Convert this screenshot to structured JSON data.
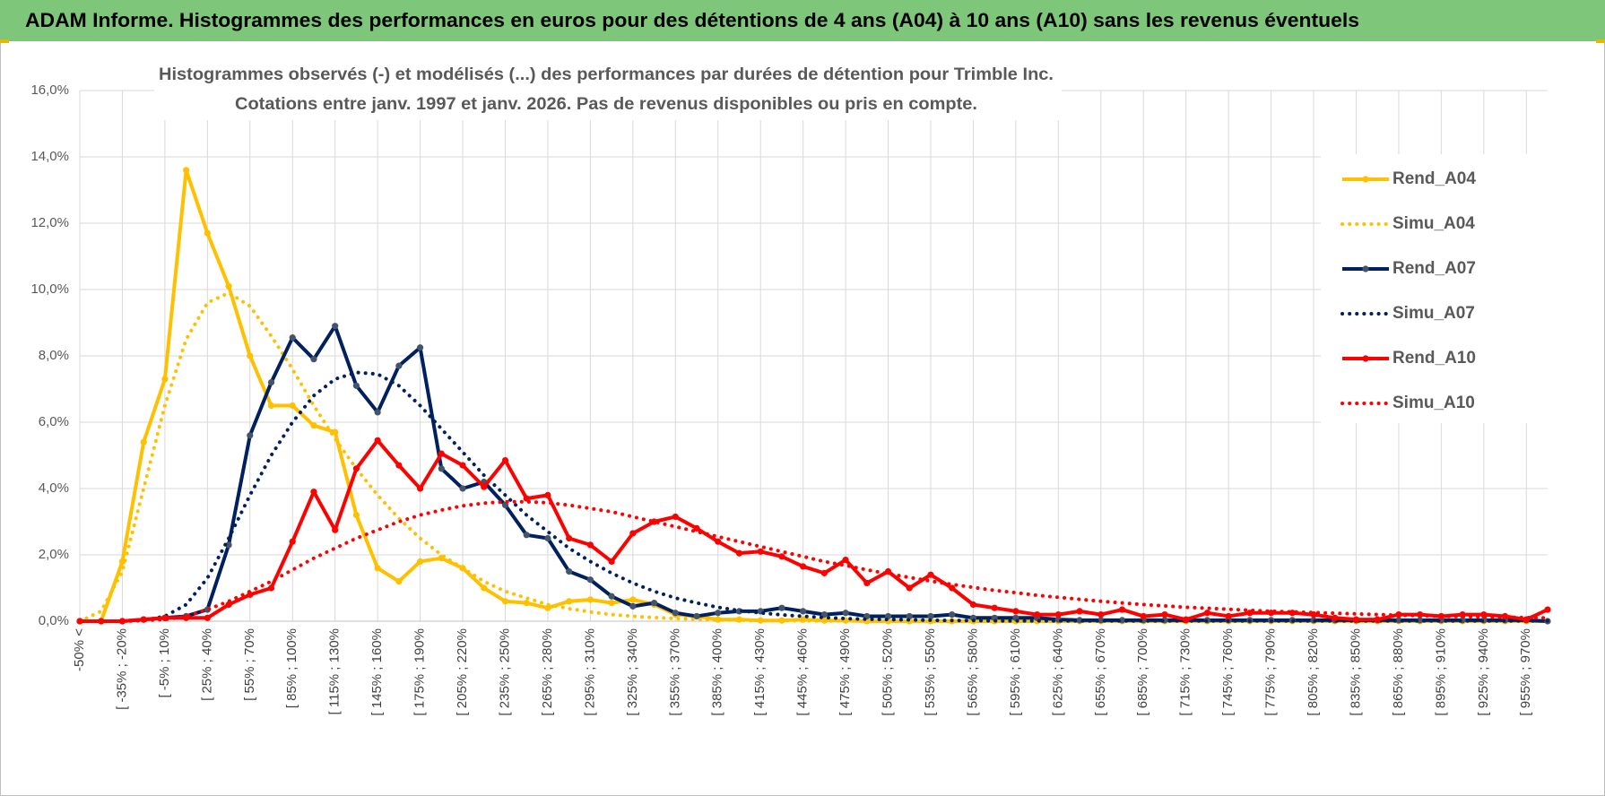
{
  "header": {
    "title": "ADAM Informe. Histogrammes des performances en euros pour des détentions de 4 ans (A04) à 10 ans (A10) sans les revenus éventuels"
  },
  "chart_data": {
    "type": "line",
    "title": "Histogrammes observés (-) et modélisés (...) des performances par durées de détention pour Trimble Inc.",
    "subtitle": "Cotations entre janv. 1997 et janv. 2026. Pas de revenus disponibles ou pris en compte.",
    "categories": [
      "-50% <",
      null,
      "[ -35% ; -20%",
      null,
      "[ -5% ; 10%",
      null,
      "[ 25% ; 40%",
      null,
      "[ 55% ; 70%",
      null,
      "[ 85% ; 100%",
      null,
      "[ 115% ; 130%",
      null,
      "[ 145% ; 160%",
      null,
      "[ 175% ; 190%",
      null,
      "[ 205% ; 220%",
      null,
      "[ 235% ; 250%",
      null,
      "[ 265% ; 280%",
      null,
      "[ 295% ; 310%",
      null,
      "[ 325% ; 340%",
      null,
      "[ 355% ; 370%",
      null,
      "[ 385% ; 400%",
      null,
      "[ 415% ; 430%",
      null,
      "[ 445% ; 460%",
      null,
      "[ 475% ; 490%",
      null,
      "[ 505% ; 520%",
      null,
      "[ 535% ; 550%",
      null,
      "[ 565% ; 580%",
      null,
      "[ 595% ; 610%",
      null,
      "[ 625% ; 640%",
      null,
      "[ 655% ; 670%",
      null,
      "[ 685% ; 700%",
      null,
      "[ 715% ; 730%",
      null,
      "[ 745% ; 760%",
      null,
      "[ 775% ; 790%",
      null,
      "[ 805% ; 820%",
      null,
      "[ 835% ; 850%",
      null,
      "[ 865% ; 880%",
      null,
      "[ 895% ; 910%",
      null,
      "[ 925% ; 940%",
      null,
      "[ 955% ; 970%",
      null
    ],
    "series": [
      {
        "name": "Rend_A04",
        "color": "#FFC000",
        "style": "solid",
        "markers": true,
        "values": [
          0,
          0,
          1.8,
          5.4,
          7.3,
          13.6,
          11.7,
          10.1,
          8,
          6.5,
          6.5,
          5.9,
          5.7,
          3.2,
          1.6,
          1.2,
          1.8,
          1.9,
          1.6,
          1,
          0.6,
          0.55,
          0.4,
          0.6,
          0.65,
          0.55,
          0.65,
          0.5,
          0.2,
          0.15,
          0.05,
          0.05,
          0.02,
          0.02,
          0.05,
          0.02,
          0.02,
          0,
          0,
          0,
          0,
          0,
          0,
          0,
          0,
          0,
          0,
          0,
          0,
          0,
          0,
          0,
          0,
          0,
          0,
          0,
          0,
          0,
          0,
          0,
          0,
          0,
          0,
          0,
          0,
          0,
          0,
          0,
          0,
          0
        ]
      },
      {
        "name": "Simu_A04",
        "color": "#FFC000",
        "style": "dotted",
        "markers": false,
        "values": [
          0,
          0.3,
          1.5,
          4,
          6.5,
          8.5,
          9.6,
          9.9,
          9.5,
          8.6,
          7.6,
          6.5,
          5.5,
          4.6,
          3.8,
          3.1,
          2.5,
          2,
          1.6,
          1.2,
          0.9,
          0.7,
          0.5,
          0.38,
          0.28,
          0.2,
          0.15,
          0.11,
          0.08,
          0.06,
          0.04,
          0.03,
          0.02,
          0.02,
          0.01,
          0.01,
          0.01,
          0,
          0,
          0,
          0,
          0,
          0,
          0,
          0,
          0,
          0,
          0,
          0,
          0,
          0,
          0,
          0,
          0,
          0,
          0,
          0,
          0,
          0,
          0,
          0,
          0,
          0,
          0,
          0,
          0,
          0,
          0,
          0,
          0
        ]
      },
      {
        "name": "Rend_A07",
        "color": "#002060",
        "style": "solid",
        "markers": true,
        "values": [
          0,
          0,
          0,
          0.05,
          0.1,
          0.15,
          0.35,
          2.3,
          5.6,
          7.2,
          8.55,
          7.9,
          8.9,
          7.1,
          6.3,
          7.7,
          8.25,
          4.6,
          4,
          4.2,
          3.5,
          2.6,
          2.5,
          1.5,
          1.25,
          0.75,
          0.45,
          0.55,
          0.25,
          0.15,
          0.25,
          0.3,
          0.3,
          0.4,
          0.3,
          0.2,
          0.25,
          0.15,
          0.15,
          0.15,
          0.15,
          0.2,
          0.1,
          0.1,
          0.1,
          0.1,
          0.05,
          0.03,
          0.03,
          0.03,
          0.03,
          0.03,
          0.03,
          0.03,
          0.03,
          0.03,
          0.03,
          0.03,
          0.03,
          0.03,
          0.03,
          0.03,
          0.03,
          0.03,
          0.03,
          0.03,
          0.03,
          0.03,
          0.03,
          0
        ]
      },
      {
        "name": "Simu_A07",
        "color": "#002060",
        "style": "dotted",
        "markers": false,
        "values": [
          0,
          0,
          0,
          0.02,
          0.15,
          0.5,
          1.3,
          2.5,
          3.8,
          5,
          6,
          6.8,
          7.3,
          7.5,
          7.45,
          7.1,
          6.5,
          5.8,
          5.1,
          4.4,
          3.8,
          3.2,
          2.7,
          2.2,
          1.8,
          1.45,
          1.15,
          0.9,
          0.7,
          0.55,
          0.42,
          0.32,
          0.25,
          0.19,
          0.15,
          0.11,
          0.08,
          0.06,
          0.05,
          0.04,
          0.03,
          0.02,
          0.02,
          0.01,
          0.01,
          0.01,
          0.01,
          0.01,
          0.01,
          0.01,
          0.01,
          0.01,
          0.01,
          0.01,
          0.01,
          0.01,
          0.01,
          0.01,
          0.01,
          0.01,
          0.01,
          0.01,
          0.01,
          0.01,
          0.01,
          0.01,
          0.01,
          0.01,
          0.01,
          0.01
        ]
      },
      {
        "name": "Rend_A10",
        "color": "#FF0000",
        "style": "solid",
        "markers": true,
        "values": [
          0,
          0,
          0,
          0.05,
          0.1,
          0.1,
          0.1,
          0.5,
          0.8,
          1,
          2.4,
          3.9,
          2.75,
          4.6,
          5.45,
          4.7,
          4,
          5.05,
          4.7,
          4.05,
          4.85,
          3.7,
          3.8,
          2.5,
          2.3,
          1.8,
          2.65,
          3,
          3.15,
          2.8,
          2.4,
          2.05,
          2.1,
          1.95,
          1.65,
          1.45,
          1.85,
          1.15,
          1.5,
          1,
          1.4,
          1,
          0.5,
          0.4,
          0.3,
          0.2,
          0.2,
          0.3,
          0.2,
          0.35,
          0.15,
          0.2,
          0.05,
          0.25,
          0.15,
          0.25,
          0.25,
          0.25,
          0.2,
          0.1,
          0.05,
          0.05,
          0.2,
          0.2,
          0.15,
          0.2,
          0.2,
          0.15,
          0.05,
          0.35
        ]
      },
      {
        "name": "Simu_A10",
        "color": "#FF0000",
        "style": "dotted",
        "markers": false,
        "values": [
          0,
          0,
          0,
          0.02,
          0.05,
          0.15,
          0.35,
          0.6,
          0.9,
          1.2,
          1.55,
          1.9,
          2.2,
          2.5,
          2.75,
          3,
          3.2,
          3.35,
          3.48,
          3.56,
          3.6,
          3.6,
          3.57,
          3.5,
          3.4,
          3.3,
          3.15,
          3,
          2.85,
          2.7,
          2.55,
          2.4,
          2.25,
          2.1,
          1.95,
          1.8,
          1.68,
          1.55,
          1.43,
          1.32,
          1.21,
          1.11,
          1.02,
          0.93,
          0.86,
          0.78,
          0.72,
          0.66,
          0.6,
          0.55,
          0.5,
          0.46,
          0.42,
          0.39,
          0.36,
          0.33,
          0.3,
          0.28,
          0.26,
          0.24,
          0.22,
          0.2,
          0.18,
          0.17,
          0.15,
          0.14,
          0.13,
          0.12,
          0.11,
          0.1
        ]
      }
    ],
    "ylim": [
      0,
      16
    ],
    "yticks": [
      {
        "value": 0,
        "label": "0,0%"
      },
      {
        "value": 2,
        "label": "2,0%"
      },
      {
        "value": 4,
        "label": "4,0%"
      },
      {
        "value": 6,
        "label": "6,0%"
      },
      {
        "value": 8,
        "label": "8,0%"
      },
      {
        "value": 10,
        "label": "10,0%"
      },
      {
        "value": 12,
        "label": "12,0%"
      },
      {
        "value": 14,
        "label": "14,0%"
      },
      {
        "value": 16,
        "label": "16,0%"
      }
    ],
    "grid": true,
    "legend": "right"
  }
}
